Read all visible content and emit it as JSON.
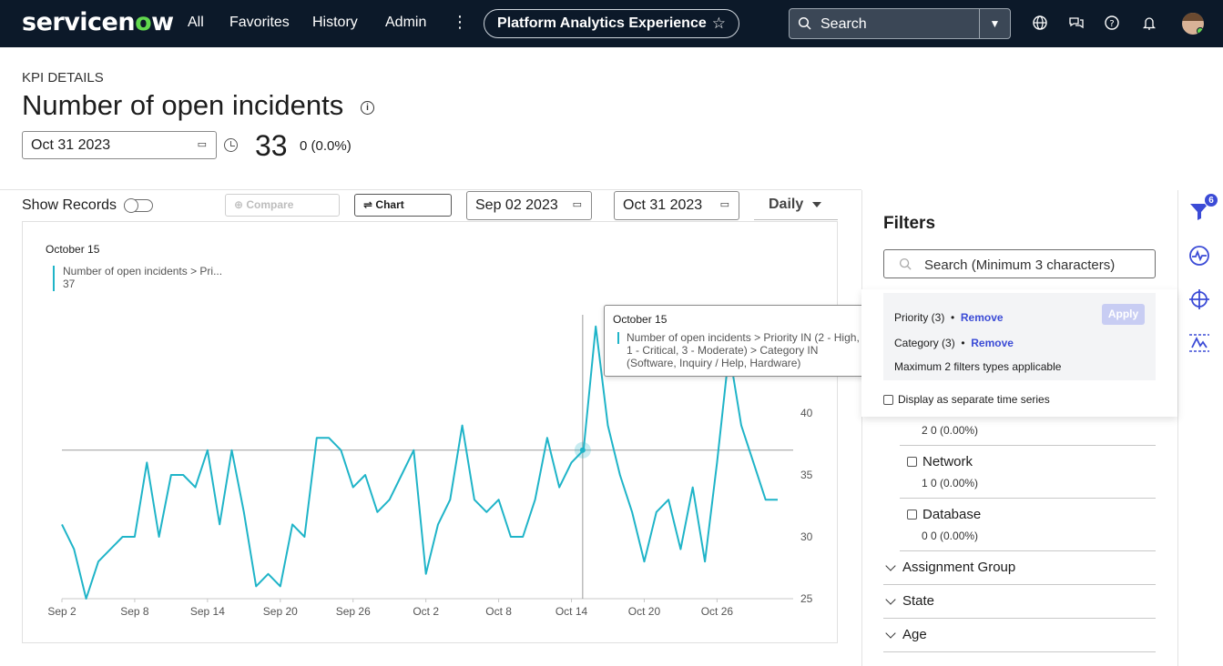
{
  "nav": {
    "logo_pre": "servicen",
    "logo_o": "o",
    "logo_post": "w",
    "all": "All",
    "favorites": "Favorites",
    "history": "History",
    "admin": "Admin",
    "workspace": "Platform Analytics Experience",
    "search_label": "Search"
  },
  "kpi": {
    "label": "KPI DETAILS",
    "title": "Number of open incidents",
    "date": "Oct 31 2023",
    "value": "33",
    "change": "0 (0.0%)"
  },
  "toolbar": {
    "show_records": "Show Records",
    "compare_records": "Compare Records",
    "chart_options": "Chart Options",
    "start_date": "Sep 02 2023",
    "end_date": "Oct 31 2023",
    "interval": "Daily"
  },
  "chart_data": {
    "type": "line",
    "x": [
      "Sep 2",
      "Sep 3",
      "Sep 4",
      "Sep 5",
      "Sep 6",
      "Sep 7",
      "Sep 8",
      "Sep 9",
      "Sep 10",
      "Sep 11",
      "Sep 12",
      "Sep 13",
      "Sep 14",
      "Sep 15",
      "Sep 16",
      "Sep 17",
      "Sep 18",
      "Sep 19",
      "Sep 20",
      "Sep 21",
      "Sep 22",
      "Sep 23",
      "Sep 24",
      "Sep 25",
      "Sep 26",
      "Sep 27",
      "Sep 28",
      "Sep 29",
      "Sep 30",
      "Oct 1",
      "Oct 2",
      "Oct 3",
      "Oct 4",
      "Oct 5",
      "Oct 6",
      "Oct 7",
      "Oct 8",
      "Oct 9",
      "Oct 10",
      "Oct 11",
      "Oct 12",
      "Oct 13",
      "Oct 14",
      "Oct 15",
      "Oct 16",
      "Oct 17",
      "Oct 18",
      "Oct 19",
      "Oct 20",
      "Oct 21",
      "Oct 22",
      "Oct 23",
      "Oct 24",
      "Oct 25",
      "Oct 26",
      "Oct 27",
      "Oct 28",
      "Oct 29",
      "Oct 30",
      "Oct 31"
    ],
    "series": [
      {
        "name": "Number of open incidents > Priority IN (2 - High, 1 - Critical, 3 - Moderate) > Category IN (Software, Inquiry / Help, Hardware)",
        "values": [
          31,
          29,
          25,
          28,
          29,
          30,
          30,
          36,
          30,
          35,
          35,
          34,
          37,
          31,
          37,
          32,
          26,
          27,
          26,
          31,
          30,
          38,
          38,
          37,
          34,
          35,
          32,
          33,
          35,
          37,
          27,
          31,
          33,
          39,
          33,
          32,
          33,
          30,
          30,
          33,
          38,
          34,
          36,
          37,
          47,
          39,
          35,
          32,
          28,
          32,
          33,
          29,
          34,
          28,
          36,
          45,
          39,
          36,
          33,
          33
        ],
        "color": "#1fb4c8"
      }
    ],
    "x_ticks": [
      "Sep 2",
      "Sep 8",
      "Sep 14",
      "Sep 20",
      "Sep 26",
      "Oct 2",
      "Oct 8",
      "Oct 14",
      "Oct 20",
      "Oct 26"
    ],
    "y_ticks": [
      25,
      30,
      35,
      40
    ],
    "ylim": [
      25,
      50
    ],
    "reference_value": 37,
    "highlight": {
      "date": "October 15",
      "value": "37"
    },
    "legend_series": "Number of open incidents > Pri...",
    "legend_value": "37"
  },
  "tooltip": {
    "date": "October 15",
    "series": "Number of open incidents > Priority IN (2 - High, 1 - Critical, 3 - Moderate) > Category IN (Software, Inquiry / Help, Hardware)",
    "value": "37"
  },
  "filters": {
    "title": "Filters",
    "search_placeholder": "Search (Minimum 3 characters)",
    "priority": "Priority (3)",
    "category": "Category (3)",
    "remove": "Remove",
    "apply": "Apply",
    "max_note": "Maximum 2 filters types applicable",
    "separate_series": "Display as separate time series",
    "partial_count": "2  0 (0.00%)",
    "network": "Network",
    "network_count": "1  0 (0.00%)",
    "database": "Database",
    "database_count": "0  0 (0.00%)",
    "assignment_group": "Assignment Group",
    "state": "State",
    "age": "Age",
    "badge": "6"
  }
}
